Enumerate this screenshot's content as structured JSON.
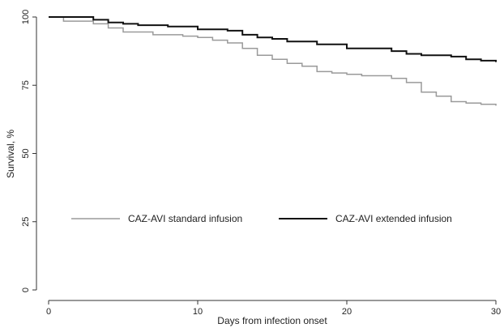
{
  "chart_data": {
    "type": "line",
    "subtype": "step",
    "title": "",
    "xlabel": "Days from infection onset",
    "ylabel": "Survival, %",
    "xlim": [
      0,
      30
    ],
    "ylim": [
      0,
      100
    ],
    "xticks": [
      0,
      10,
      20,
      30
    ],
    "yticks": [
      0,
      25,
      50,
      75,
      100
    ],
    "grid": false,
    "legend_position": "center-left, inside plot",
    "series": [
      {
        "name": "CAZ-AVI standard infusion",
        "color": "#9a9a9a",
        "x": [
          0,
          1,
          3,
          4,
          5,
          7,
          9,
          10,
          11,
          12,
          13,
          14,
          15,
          16,
          17,
          18,
          19,
          20,
          21,
          23,
          24,
          25,
          26,
          27,
          28,
          29,
          30
        ],
        "y": [
          100,
          98.5,
          97.5,
          96,
          94.5,
          93.5,
          93,
          92.5,
          91.5,
          90.5,
          88.5,
          86,
          84.5,
          83,
          82,
          80,
          79.5,
          79,
          78.5,
          77.5,
          76,
          72.5,
          71,
          69,
          68.5,
          68,
          67.5
        ]
      },
      {
        "name": "CAZ-AVI extended infusion",
        "color": "#111111",
        "x": [
          0,
          3,
          4,
          5,
          6,
          8,
          10,
          12,
          13,
          14,
          15,
          16,
          18,
          20,
          23,
          24,
          25,
          27,
          28,
          29,
          30
        ],
        "y": [
          100,
          99,
          98,
          97.5,
          97,
          96.5,
          95.5,
          95,
          93.5,
          92.5,
          92,
          91,
          90,
          88.5,
          87.5,
          86.5,
          86,
          85.5,
          84.5,
          84,
          83.5
        ]
      }
    ]
  }
}
